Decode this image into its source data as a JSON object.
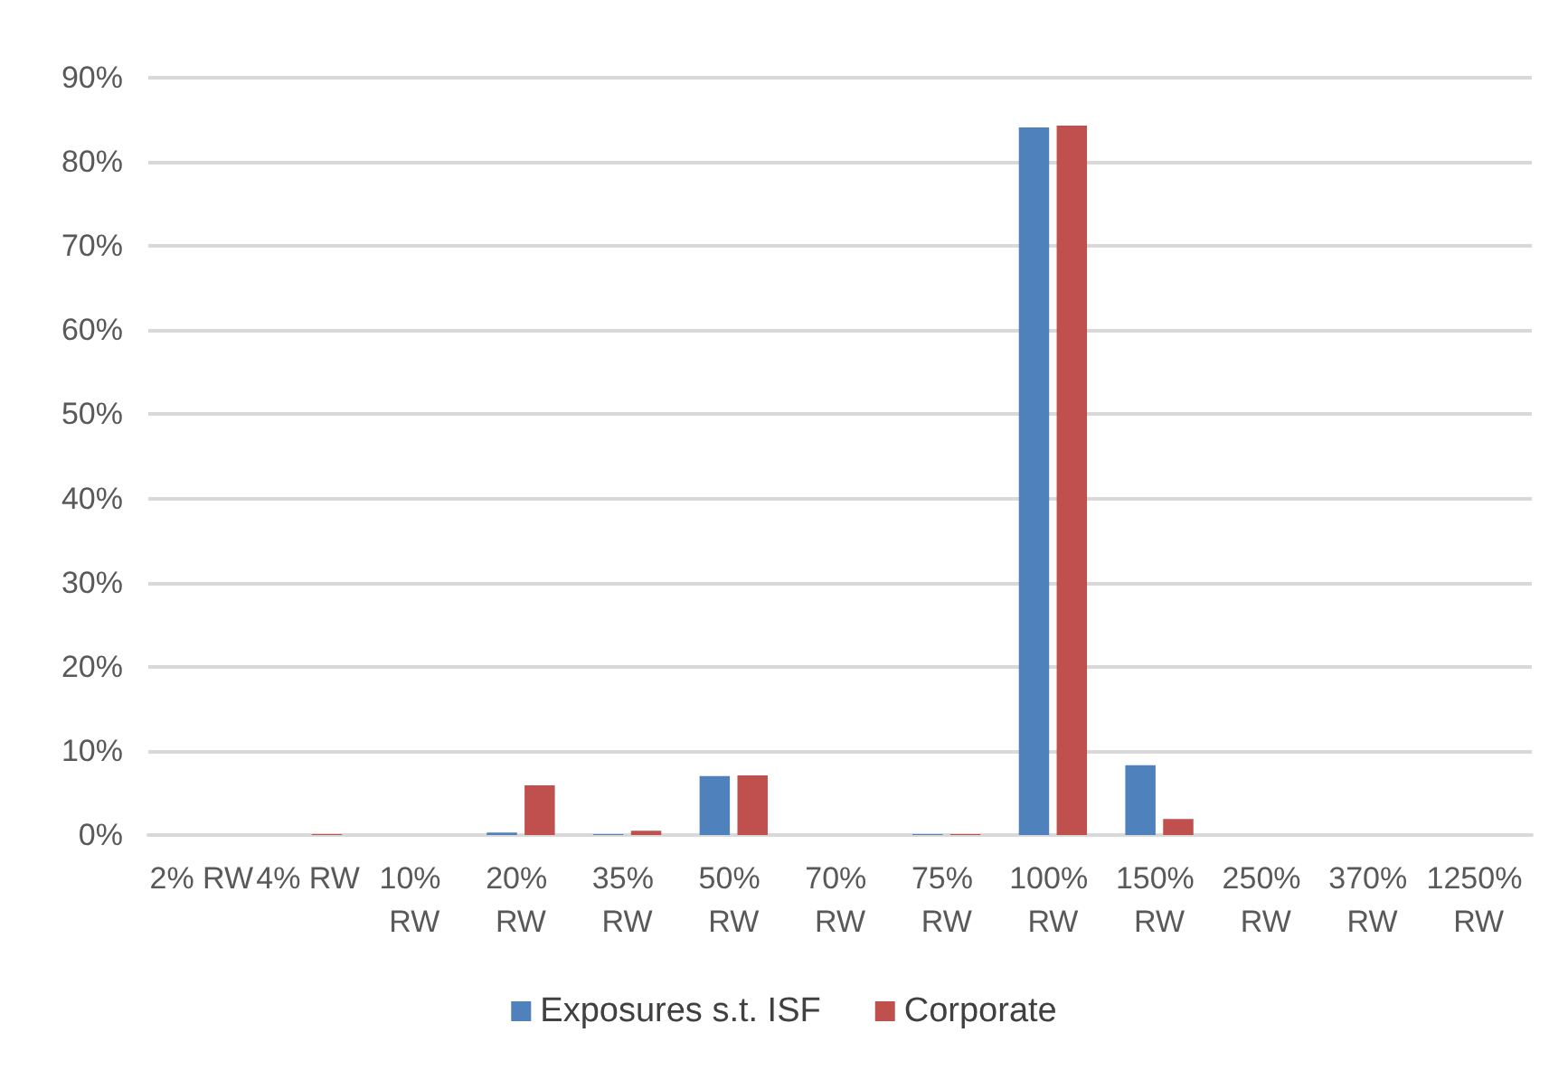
{
  "chart_data": {
    "type": "bar",
    "categories": [
      "2% RW",
      "4% RW",
      "10% RW",
      "20% RW",
      "35% RW",
      "50% RW",
      "70% RW",
      "75% RW",
      "100% RW",
      "150% RW",
      "250% RW",
      "370% RW",
      "1250% RW"
    ],
    "series": [
      {
        "name": "Exposures s.t. ISF",
        "color": "#4f81bd",
        "values": [
          0,
          0,
          0,
          0.3,
          0.1,
          7,
          0,
          0.1,
          84.1,
          8.3,
          0,
          0,
          0
        ]
      },
      {
        "name": "Corporate",
        "color": "#c0504d",
        "values": [
          0,
          0.1,
          0,
          5.9,
          0.5,
          7.1,
          0,
          0.1,
          84.3,
          1.9,
          0,
          0,
          0
        ]
      }
    ],
    "ylim": [
      0,
      90
    ],
    "yticks": [
      {
        "value": 0,
        "label": "0%"
      },
      {
        "value": 10,
        "label": "10%"
      },
      {
        "value": 20,
        "label": "20%"
      },
      {
        "value": 30,
        "label": "30%"
      },
      {
        "value": 40,
        "label": "40%"
      },
      {
        "value": 50,
        "label": "50%"
      },
      {
        "value": 60,
        "label": "60%"
      },
      {
        "value": 70,
        "label": "70%"
      },
      {
        "value": 80,
        "label": "80%"
      },
      {
        "value": 90,
        "label": "90%"
      }
    ],
    "grid": "y",
    "legend": "bottom"
  }
}
